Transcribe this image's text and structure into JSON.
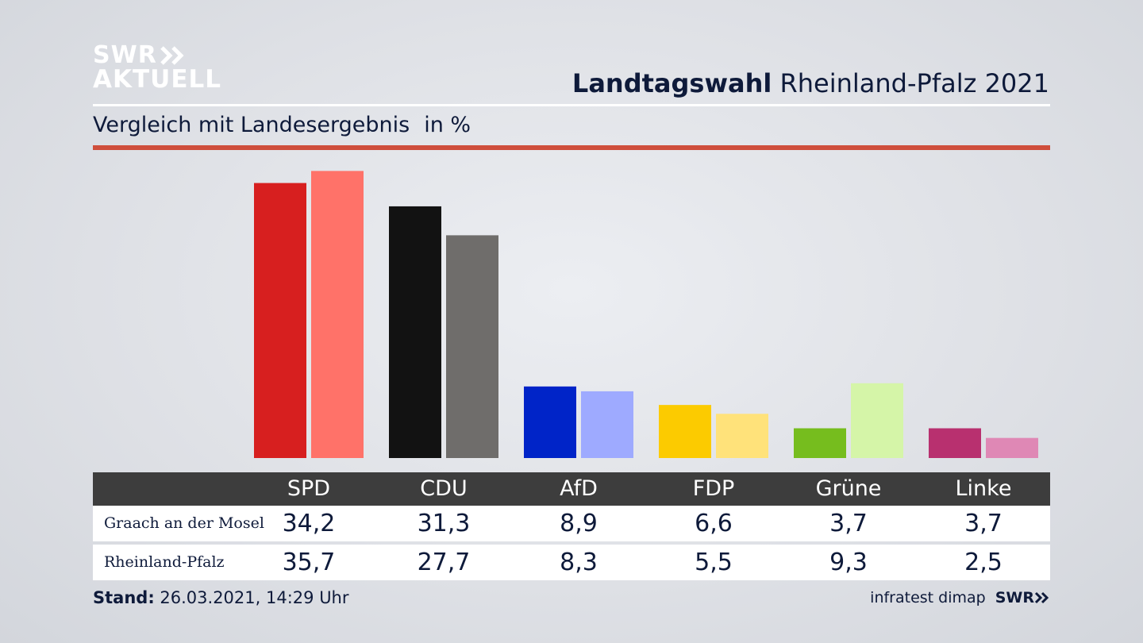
{
  "logo": {
    "line1": "SWR",
    "line2": "AKTUELL"
  },
  "header": {
    "title_bold": "Landtagswahl",
    "title_rest": "Rheinland-Pfalz 2021"
  },
  "subtitle": {
    "text": "Vergleich mit Landesergebnis",
    "unit": "in %"
  },
  "table": {
    "parties": [
      "SPD",
      "CDU",
      "AfD",
      "FDP",
      "Grüne",
      "Linke"
    ],
    "rows": [
      {
        "label": "Graach an der Mosel",
        "values": [
          "34,2",
          "31,3",
          "8,9",
          "6,6",
          "3,7",
          "3,7"
        ]
      },
      {
        "label": "Rheinland-Pfalz",
        "values": [
          "35,7",
          "27,7",
          "8,3",
          "5,5",
          "9,3",
          "2,5"
        ]
      }
    ]
  },
  "footer": {
    "stand_label": "Stand:",
    "stand_value": "26.03.2021, 14:29 Uhr",
    "source": "infratest dimap",
    "brand": "SWR"
  },
  "colors": {
    "header_bg": "#3d3d3d",
    "accent_rule": "#cf4e3c",
    "local": [
      "#d71f1f",
      "#121212",
      "#0024c8",
      "#fccb00",
      "#76bd1e",
      "#b8306f"
    ],
    "state": [
      "#ff7269",
      "#6f6d6b",
      "#9eaaff",
      "#ffe27a",
      "#d5f5a8",
      "#df88b5"
    ]
  },
  "chart_data": {
    "type": "bar",
    "categories": [
      "SPD",
      "CDU",
      "AfD",
      "FDP",
      "Grüne",
      "Linke"
    ],
    "series": [
      {
        "name": "Graach an der Mosel",
        "values": [
          34.2,
          31.3,
          8.9,
          6.6,
          3.7,
          3.7
        ]
      },
      {
        "name": "Rheinland-Pfalz",
        "values": [
          35.7,
          27.7,
          8.3,
          5.5,
          9.3,
          2.5
        ]
      }
    ],
    "title": "Landtagswahl Rheinland-Pfalz 2021",
    "subtitle": "Vergleich mit Landesergebnis",
    "ylabel": "in %",
    "ylim": [
      0,
      36
    ],
    "grid": false,
    "legend": "table below chart"
  }
}
